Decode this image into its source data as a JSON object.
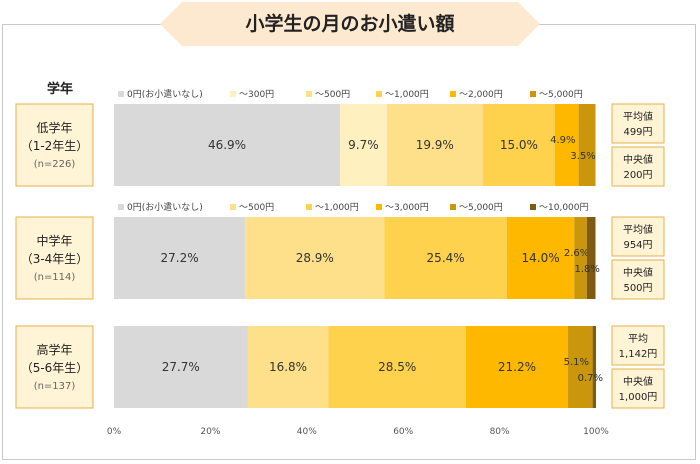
{
  "title": "小学生の月のお小遣い額",
  "grade_header": "学年",
  "colors": {
    "title_bg": "#fde9d0",
    "box_fill": "#fff4d6",
    "box_border": "#e7b04a",
    "segment_palette": [
      "#d9d9d9",
      "#fff0bf",
      "#ffe08a",
      "#ffd24d",
      "#ffb800",
      "#c9960c",
      "#7f5a12"
    ]
  },
  "chart_data": {
    "type": "bar",
    "orientation": "horizontal",
    "stacked": true,
    "x_unit": "%",
    "xlim": [
      0,
      100
    ],
    "x_ticks": [
      "0%",
      "20%",
      "40%",
      "60%",
      "80%",
      "100%"
    ],
    "groups": [
      {
        "label_lines": [
          "低学年",
          "（1-2年生）"
        ],
        "n_label": "(n=226)",
        "legend": [
          "0円(お小遣いなし)",
          "～300円",
          "～500円",
          "～1,000円",
          "～2,000円",
          "～5,000円"
        ],
        "color_index": [
          0,
          1,
          2,
          3,
          4,
          5
        ],
        "values": [
          46.9,
          9.7,
          19.9,
          15.0,
          4.9,
          3.5
        ],
        "value_labels": [
          "46.9%",
          "9.7%",
          "19.9%",
          "15.0%",
          "4.9%",
          "3.5%"
        ],
        "stats": [
          {
            "label": "平均値",
            "value": "499円"
          },
          {
            "label": "中央値",
            "value": "200円"
          }
        ]
      },
      {
        "label_lines": [
          "中学年",
          "（3-4年生）"
        ],
        "n_label": "(n=114)",
        "legend": [
          "0円(お小遣いなし)",
          "～500円",
          "～1,000円",
          "～3,000円",
          "～5,000円",
          "～10,000円"
        ],
        "color_index": [
          0,
          2,
          3,
          4,
          5,
          6
        ],
        "values": [
          27.2,
          28.9,
          25.4,
          14.0,
          2.6,
          1.8
        ],
        "value_labels": [
          "27.2%",
          "28.9%",
          "25.4%",
          "14.0%",
          "2.6%",
          "1.8%"
        ],
        "stats": [
          {
            "label": "平均値",
            "value": "954円"
          },
          {
            "label": "中央値",
            "value": "500円"
          }
        ]
      },
      {
        "label_lines": [
          "高学年",
          "（5-6年生）"
        ],
        "n_label": "(n=137)",
        "legend": [],
        "color_index": [
          0,
          2,
          3,
          4,
          5,
          6
        ],
        "values": [
          27.7,
          16.8,
          28.5,
          21.2,
          5.1,
          0.7
        ],
        "value_labels": [
          "27.7%",
          "16.8%",
          "28.5%",
          "21.2%",
          "5.1%",
          "0.7%"
        ],
        "stats": [
          {
            "label": "平均",
            "value": "1,142円"
          },
          {
            "label": "中央値",
            "value": "1,000円"
          }
        ]
      }
    ]
  }
}
